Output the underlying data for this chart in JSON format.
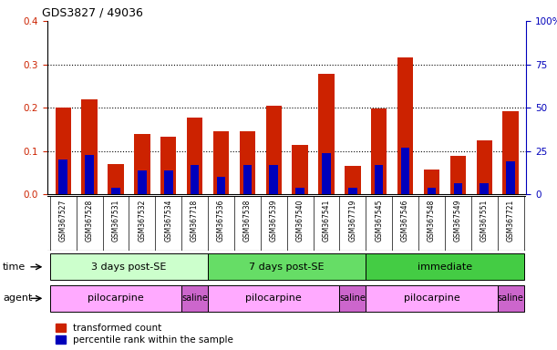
{
  "title": "GDS3827 / 49036",
  "samples": [
    "GSM367527",
    "GSM367528",
    "GSM367531",
    "GSM367532",
    "GSM367534",
    "GSM367718",
    "GSM367536",
    "GSM367538",
    "GSM367539",
    "GSM367540",
    "GSM367541",
    "GSM367719",
    "GSM367545",
    "GSM367546",
    "GSM367548",
    "GSM367549",
    "GSM367551",
    "GSM367721"
  ],
  "red_values": [
    0.2,
    0.22,
    0.07,
    0.14,
    0.133,
    0.178,
    0.145,
    0.145,
    0.205,
    0.113,
    0.278,
    0.065,
    0.198,
    0.315,
    0.058,
    0.088,
    0.124,
    0.192
  ],
  "blue_values": [
    0.08,
    0.09,
    0.015,
    0.055,
    0.055,
    0.068,
    0.04,
    0.068,
    0.068,
    0.015,
    0.095,
    0.015,
    0.068,
    0.108,
    0.015,
    0.025,
    0.025,
    0.075
  ],
  "ylim_left": [
    0,
    0.4
  ],
  "ylim_right": [
    0,
    100
  ],
  "yticks_left": [
    0,
    0.1,
    0.2,
    0.3,
    0.4
  ],
  "yticks_right": [
    0,
    25,
    50,
    75,
    100
  ],
  "time_groups": [
    {
      "label": "3 days post-SE",
      "start": 0,
      "end": 6,
      "color": "#ccffcc"
    },
    {
      "label": "7 days post-SE",
      "start": 6,
      "end": 12,
      "color": "#66dd66"
    },
    {
      "label": "immediate",
      "start": 12,
      "end": 18,
      "color": "#44cc44"
    }
  ],
  "agent_groups": [
    {
      "label": "pilocarpine",
      "start": 0,
      "end": 5,
      "color": "#ffaaff"
    },
    {
      "label": "saline",
      "start": 5,
      "end": 6,
      "color": "#cc66cc"
    },
    {
      "label": "pilocarpine",
      "start": 6,
      "end": 11,
      "color": "#ffaaff"
    },
    {
      "label": "saline",
      "start": 11,
      "end": 12,
      "color": "#cc66cc"
    },
    {
      "label": "pilocarpine",
      "start": 12,
      "end": 17,
      "color": "#ffaaff"
    },
    {
      "label": "saline",
      "start": 17,
      "end": 18,
      "color": "#cc66cc"
    }
  ],
  "bar_color_red": "#cc2200",
  "bar_color_blue": "#0000bb",
  "bar_width": 0.6,
  "left_axis_color": "#cc2200",
  "right_axis_color": "#0000bb",
  "bg_color": "#ffffff",
  "tick_label_area_color": "#e0e0e0",
  "legend_items": [
    {
      "label": "transformed count",
      "color": "#cc2200"
    },
    {
      "label": "percentile rank within the sample",
      "color": "#0000bb"
    }
  ]
}
